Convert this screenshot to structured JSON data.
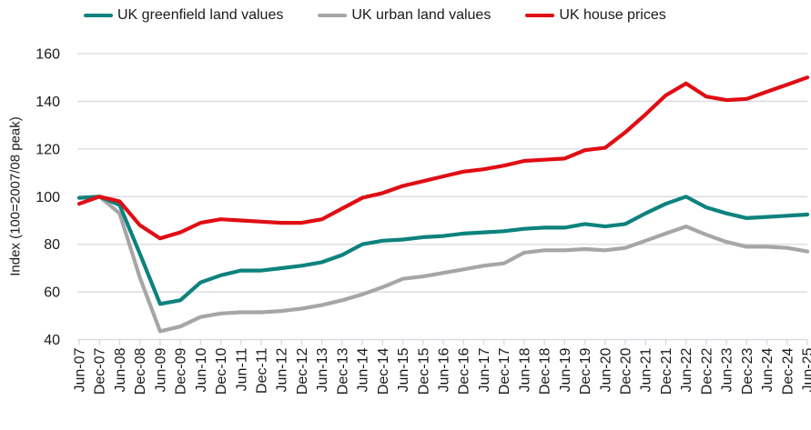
{
  "legend": {
    "items": [
      {
        "label": "UK greenfield land values",
        "color": "#0d827e"
      },
      {
        "label": "UK urban land values",
        "color": "#a6a6a6"
      },
      {
        "label": "UK house prices",
        "color": "#e00d14"
      }
    ]
  },
  "chart_data": {
    "type": "line",
    "title": "",
    "xlabel": "",
    "ylabel": "Index (100=2007/08 peak)",
    "ylim": [
      40,
      160
    ],
    "ytick_step": 20,
    "grid": true,
    "legend_position": "top",
    "gridline_color": "#d9d9e3",
    "text_color": "#1a1a1a",
    "draw_order": [
      1,
      0,
      2
    ],
    "categories": [
      "Jun-07",
      "Dec-07",
      "Jun-08",
      "Dec-08",
      "Jun-09",
      "Dec-09",
      "Jun-10",
      "Dec-10",
      "Jun-11",
      "Dec-11",
      "Jun-12",
      "Dec-12",
      "Jun-13",
      "Dec-13",
      "Jun-14",
      "Dec-14",
      "Jun-15",
      "Dec-15",
      "Jun-16",
      "Dec-16",
      "Jun-17",
      "Dec-17",
      "Jun-18",
      "Dec-18",
      "Jun-19",
      "Dec-19",
      "Jun-20",
      "Dec-20",
      "Jun-21",
      "Dec-21",
      "Jun-22",
      "Dec-22",
      "Jun-23",
      "Dec-23",
      "Jun-24",
      "Dec-24",
      "Jun-25"
    ],
    "series": [
      {
        "name": "UK greenfield land values",
        "color": "#0d827e",
        "values": [
          99.5,
          100,
          96.5,
          76,
          55,
          56.5,
          64,
          67,
          69,
          69,
          70,
          71,
          72.5,
          75.5,
          80,
          81.5,
          82,
          83,
          83.5,
          84.5,
          85,
          85.5,
          86.5,
          87,
          87,
          88.5,
          87.5,
          88.5,
          93,
          97,
          100,
          95.5,
          93,
          91,
          91.5,
          92,
          92.5
        ]
      },
      {
        "name": "UK urban land values",
        "color": "#a6a6a6",
        "values": [
          99.5,
          100,
          93,
          66,
          43.5,
          45.5,
          49.5,
          51,
          51.5,
          51.5,
          52,
          53,
          54.5,
          56.5,
          59,
          62,
          65.5,
          66.5,
          68,
          69.5,
          71,
          72,
          76.5,
          77.5,
          77.5,
          78,
          77.5,
          78.5,
          81.5,
          84.5,
          87.5,
          84,
          81,
          79,
          79,
          78.5,
          77
        ]
      },
      {
        "name": "UK house prices",
        "color": "#e00d14",
        "values": [
          97,
          100,
          98,
          88,
          82.5,
          85,
          89,
          90.5,
          90,
          89.5,
          89,
          89,
          90.5,
          95,
          99.5,
          101.5,
          104.5,
          106.5,
          108.5,
          110.5,
          111.5,
          113,
          115,
          115.5,
          116,
          119.5,
          120.5,
          127,
          134.5,
          142.5,
          147.5,
          142,
          140.5,
          141,
          144,
          147,
          150
        ]
      }
    ]
  }
}
